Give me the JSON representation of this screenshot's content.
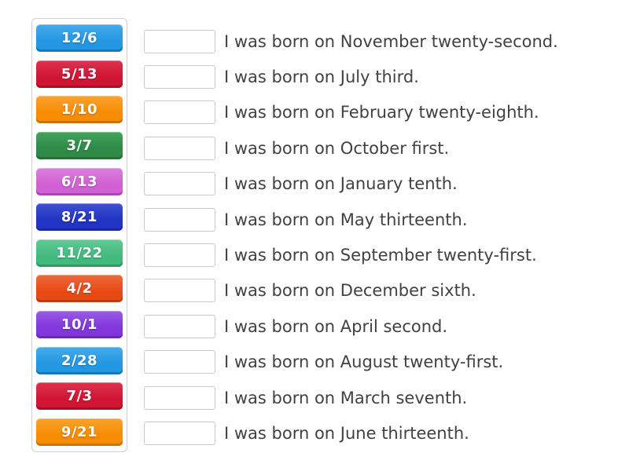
{
  "app": {
    "name": "match-up-activity"
  },
  "tile_panel": {
    "tiles": [
      {
        "label": "12/6",
        "color": {
          "base": "#2497e3",
          "light": "#45abeb",
          "dark": "#1878ba"
        }
      },
      {
        "label": "5/13",
        "color": {
          "base": "#d01534",
          "light": "#dd3350",
          "dark": "#a61029"
        }
      },
      {
        "label": "1/10",
        "color": {
          "base": "#f88c02",
          "light": "#faa32e",
          "dark": "#cb7302"
        }
      },
      {
        "label": "3/7",
        "color": {
          "base": "#2e8b47",
          "light": "#44a35c",
          "dark": "#247038"
        }
      },
      {
        "label": "6/13",
        "color": {
          "base": "#d060d3",
          "light": "#dc7fde",
          "dark": "#ab48ae"
        }
      },
      {
        "label": "8/21",
        "color": {
          "base": "#2134c4",
          "light": "#4150d3",
          "dark": "#1a289e"
        }
      },
      {
        "label": "11/22",
        "color": {
          "base": "#42ba7e",
          "light": "#63c997",
          "dark": "#349666"
        }
      },
      {
        "label": "4/2",
        "color": {
          "base": "#e84a15",
          "light": "#ee6a3c",
          "dark": "#bc3b0f"
        }
      },
      {
        "label": "10/1",
        "color": {
          "base": "#8236dc",
          "light": "#9a5ce5",
          "dark": "#682ab3"
        }
      },
      {
        "label": "2/28",
        "color": {
          "base": "#2497e3",
          "light": "#45abeb",
          "dark": "#1878ba"
        }
      },
      {
        "label": "7/3",
        "color": {
          "base": "#d01534",
          "light": "#dd3350",
          "dark": "#a61029"
        }
      },
      {
        "label": "9/21",
        "color": {
          "base": "#f88c02",
          "light": "#faa32e",
          "dark": "#cb7302"
        }
      }
    ]
  },
  "rows": [
    {
      "sentence": "I was born on November twenty-second."
    },
    {
      "sentence": "I was born on July third."
    },
    {
      "sentence": "I was born on February twenty-eighth."
    },
    {
      "sentence": "I was born on October first."
    },
    {
      "sentence": "I was born on January tenth."
    },
    {
      "sentence": "I was born on May thirteenth."
    },
    {
      "sentence": "I was born on September twenty-first."
    },
    {
      "sentence": "I was born on December sixth."
    },
    {
      "sentence": "I was born on April second."
    },
    {
      "sentence": "I was born on August twenty-first."
    },
    {
      "sentence": "I was born on March seventh."
    },
    {
      "sentence": "I was born on June thirteenth."
    }
  ],
  "drop_box": {
    "fill": "#ffffff",
    "border": "#c9c9c9"
  },
  "text_color": "#414141"
}
